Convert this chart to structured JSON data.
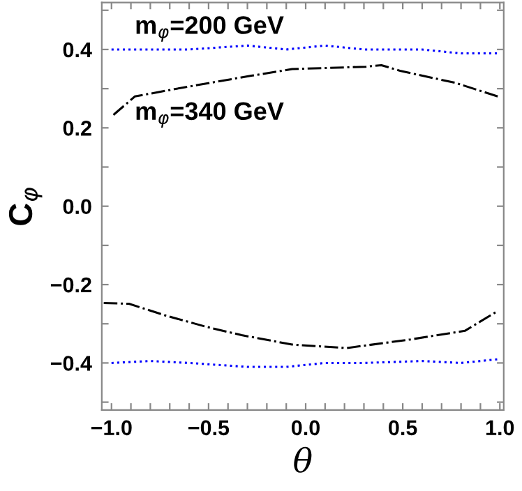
{
  "chart_data": {
    "type": "line",
    "xlabel": "θ",
    "ylabel": "C$_{φ}$",
    "xlim": [
      -1.05,
      1.02
    ],
    "ylim": [
      -0.52,
      0.52
    ],
    "xticks": [
      {
        "value": -1.0,
        "label": "−1.0"
      },
      {
        "value": -0.9,
        "label": null
      },
      {
        "value": -0.8,
        "label": null
      },
      {
        "value": -0.7,
        "label": null
      },
      {
        "value": -0.6,
        "label": null
      },
      {
        "value": -0.5,
        "label": "−0.5"
      },
      {
        "value": -0.4,
        "label": null
      },
      {
        "value": -0.3,
        "label": null
      },
      {
        "value": -0.2,
        "label": null
      },
      {
        "value": -0.1,
        "label": null
      },
      {
        "value": 0.0,
        "label": "0.0"
      },
      {
        "value": 0.1,
        "label": null
      },
      {
        "value": 0.2,
        "label": null
      },
      {
        "value": 0.3,
        "label": null
      },
      {
        "value": 0.4,
        "label": null
      },
      {
        "value": 0.5,
        "label": "0.5"
      },
      {
        "value": 0.6,
        "label": null
      },
      {
        "value": 0.7,
        "label": null
      },
      {
        "value": 0.8,
        "label": null
      },
      {
        "value": 0.9,
        "label": null
      },
      {
        "value": 1.0,
        "label": "1.0"
      }
    ],
    "yticks": [
      {
        "value": -0.5,
        "label": null
      },
      {
        "value": -0.4,
        "label": "−0.4"
      },
      {
        "value": -0.3,
        "label": null
      },
      {
        "value": -0.2,
        "label": "−0.2"
      },
      {
        "value": -0.1,
        "label": null
      },
      {
        "value": 0.0,
        "label": "0.0"
      },
      {
        "value": 0.1,
        "label": null
      },
      {
        "value": 0.2,
        "label": "0.2"
      },
      {
        "value": 0.3,
        "label": null
      },
      {
        "value": 0.4,
        "label": "0.4"
      },
      {
        "value": 0.5,
        "label": null
      }
    ],
    "grid": false,
    "legend": false,
    "marker": "none",
    "series": [
      {
        "name": "m$_{φ}$=200 GeV",
        "color": "#0000ff",
        "line_style": "dotted",
        "x": [
          -1.0,
          -0.8,
          -0.6,
          -0.3,
          -0.1,
          0.1,
          0.3,
          0.6,
          0.8,
          1.0
        ],
        "values": [
          0.4,
          0.4,
          0.4,
          0.41,
          0.4,
          0.41,
          0.4,
          0.4,
          0.39,
          0.39
        ]
      },
      {
        "name": "m$_{φ}$=340 GeV",
        "color": "#000000",
        "line_style": "dashdot",
        "x": [
          -0.99,
          -0.88,
          -0.63,
          -0.28,
          -0.07,
          0.31,
          0.39,
          0.49,
          0.77,
          0.99
        ],
        "values": [
          0.233,
          0.28,
          0.303,
          0.333,
          0.35,
          0.356,
          0.36,
          0.345,
          0.315,
          0.28
        ]
      },
      {
        "color": "#000000",
        "line_style": "dashdot",
        "x": [
          -1.04,
          -0.91,
          -0.72,
          -0.51,
          -0.33,
          -0.07,
          0.21,
          0.54,
          0.82,
          0.99
        ],
        "values": [
          -0.247,
          -0.249,
          -0.279,
          -0.308,
          -0.329,
          -0.353,
          -0.362,
          -0.34,
          -0.318,
          -0.267
        ]
      },
      {
        "color": "#0000ff",
        "line_style": "dotted",
        "x": [
          -1.0,
          -0.8,
          -0.6,
          -0.3,
          -0.1,
          0.1,
          0.3,
          0.6,
          0.8,
          1.0
        ],
        "values": [
          -0.4,
          -0.395,
          -0.4,
          -0.41,
          -0.41,
          -0.4,
          -0.4,
          -0.395,
          -0.4,
          -0.39
        ]
      }
    ]
  }
}
